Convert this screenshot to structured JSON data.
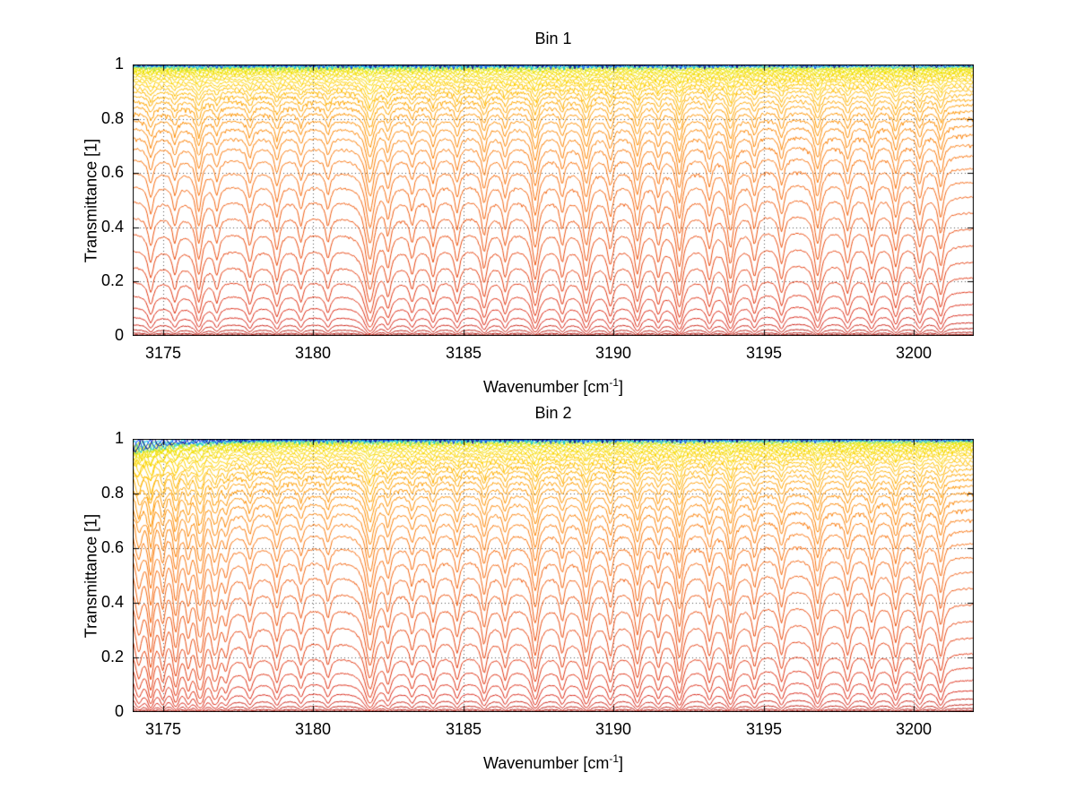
{
  "figure": {
    "background": "#ffffff"
  },
  "chart_data": [
    {
      "type": "line",
      "title": "Bin 1",
      "xlabel_pre": "Wavenumber [cm",
      "xlabel_sup": "-1",
      "xlabel_post": "]",
      "ylabel": "Transmittance [1]",
      "xlim": [
        3174,
        3202
      ],
      "ylim": [
        0,
        1
      ],
      "xticks": [
        "3175",
        "3180",
        "3185",
        "3190",
        "3195",
        "3200"
      ],
      "xtick_values": [
        3175,
        3180,
        3185,
        3190,
        3195,
        3200
      ],
      "yticks": [
        "1",
        "0.8",
        "0.6",
        "0.4",
        "0.2",
        "0"
      ],
      "ytick_values": [
        1,
        0.8,
        0.6,
        0.4,
        0.2,
        0
      ],
      "grid": "dotted",
      "description": "Stack of ~42 transmittance spectra (Beer-Lambert: T=exp(-tau*(1+continuum+lines))); 'levels' are each curve's continuum transmittance, 'lines' are absorption lines [center cm-1, relative strength, halfwidth cm-1].",
      "levels": [
        0.9995,
        0.998,
        0.996,
        0.9935,
        0.9905,
        0.987,
        0.983,
        0.978,
        0.9725,
        0.966,
        0.9585,
        0.95,
        0.9405,
        0.93,
        0.918,
        0.9045,
        0.889,
        0.871,
        0.851,
        0.8285,
        0.803,
        0.774,
        0.7415,
        0.705,
        0.664,
        0.6185,
        0.5685,
        0.514,
        0.456,
        0.3955,
        0.334,
        0.2735,
        0.216,
        0.1635,
        0.1175,
        0.079,
        0.049,
        0.0275,
        0.0135,
        0.0055,
        0.0018,
        0.0004
      ],
      "continuum_slope": 0.05,
      "lines": [
        [
          3174.6,
          0.35,
          0.1
        ],
        [
          3175.4,
          0.3,
          0.09
        ],
        [
          3176.2,
          0.55,
          0.11
        ],
        [
          3176.8,
          0.3,
          0.09
        ],
        [
          3177.9,
          0.35,
          0.1
        ],
        [
          3178.8,
          0.4,
          0.1
        ],
        [
          3179.6,
          0.3,
          0.09
        ],
        [
          3180.5,
          0.3,
          0.09
        ],
        [
          3181.9,
          0.85,
          0.16
        ],
        [
          3182.5,
          0.4,
          0.1
        ],
        [
          3183.3,
          0.3,
          0.09
        ],
        [
          3184.0,
          0.35,
          0.09
        ],
        [
          3184.8,
          0.35,
          0.09
        ],
        [
          3185.7,
          0.45,
          0.1
        ],
        [
          3186.4,
          0.35,
          0.09
        ],
        [
          3187.4,
          0.65,
          0.12
        ],
        [
          3188.3,
          0.35,
          0.09
        ],
        [
          3189.1,
          0.6,
          0.12
        ],
        [
          3189.9,
          0.4,
          0.1
        ],
        [
          3190.8,
          0.55,
          0.11
        ],
        [
          3191.5,
          0.35,
          0.09
        ],
        [
          3192.2,
          0.7,
          0.12
        ],
        [
          3193.2,
          0.4,
          0.1
        ],
        [
          3193.9,
          0.65,
          0.12
        ],
        [
          3194.7,
          0.35,
          0.09
        ],
        [
          3195.6,
          0.4,
          0.1
        ],
        [
          3196.8,
          0.6,
          0.12
        ],
        [
          3197.8,
          0.4,
          0.1
        ],
        [
          3198.6,
          0.4,
          0.1
        ],
        [
          3199.4,
          0.45,
          0.1
        ],
        [
          3200.2,
          0.4,
          0.1
        ],
        [
          3200.9,
          0.45,
          0.1
        ]
      ],
      "edge": null,
      "colormap": [
        {
          "pos": 0.0,
          "color": "#00008f"
        },
        {
          "pos": 0.025,
          "color": "#0040ff"
        },
        {
          "pos": 0.05,
          "color": "#00c8e8"
        },
        {
          "pos": 0.08,
          "color": "#60e080"
        },
        {
          "pos": 0.11,
          "color": "#e8e800"
        },
        {
          "pos": 0.3,
          "color": "#ffd000"
        },
        {
          "pos": 0.45,
          "color": "#ff9800"
        },
        {
          "pos": 0.6,
          "color": "#f87010"
        },
        {
          "pos": 0.72,
          "color": "#e84810"
        },
        {
          "pos": 0.85,
          "color": "#d82010"
        },
        {
          "pos": 1.0,
          "color": "#8f0000"
        }
      ]
    },
    {
      "type": "line",
      "title": "Bin 2",
      "xlabel_pre": "Wavenumber [cm",
      "xlabel_sup": "-1",
      "xlabel_post": "]",
      "ylabel": "Transmittance [1]",
      "xlim": [
        3174,
        3202
      ],
      "ylim": [
        0,
        1
      ],
      "xticks": [
        "3175",
        "3180",
        "3185",
        "3190",
        "3195",
        "3200"
      ],
      "xtick_values": [
        3175,
        3180,
        3185,
        3190,
        3195,
        3200
      ],
      "yticks": [
        "1",
        "0.8",
        "0.6",
        "0.4",
        "0.2",
        "0"
      ],
      "ytick_values": [
        1,
        0.8,
        0.6,
        0.4,
        0.2,
        0
      ],
      "grid": "dotted",
      "description": "Same spectra stack as Bin 1 but with strong oscillatory structure and extra absorption lines near the left edge (3174-3177 cm-1).",
      "levels": [
        0.9995,
        0.998,
        0.996,
        0.9935,
        0.9905,
        0.987,
        0.983,
        0.978,
        0.9725,
        0.966,
        0.9585,
        0.95,
        0.9405,
        0.93,
        0.918,
        0.9045,
        0.889,
        0.871,
        0.851,
        0.8285,
        0.803,
        0.774,
        0.7415,
        0.705,
        0.664,
        0.6185,
        0.5685,
        0.514,
        0.456,
        0.3955,
        0.334,
        0.2735,
        0.216,
        0.1635,
        0.1175,
        0.079,
        0.049,
        0.0275,
        0.0135,
        0.0055,
        0.0018,
        0.0004
      ],
      "continuum_slope": 0.05,
      "lines": [
        [
          3174.6,
          0.35,
          0.1
        ],
        [
          3175.4,
          0.3,
          0.09
        ],
        [
          3176.2,
          0.55,
          0.11
        ],
        [
          3176.8,
          0.3,
          0.09
        ],
        [
          3177.9,
          0.35,
          0.1
        ],
        [
          3178.8,
          0.4,
          0.1
        ],
        [
          3179.6,
          0.3,
          0.09
        ],
        [
          3180.5,
          0.3,
          0.09
        ],
        [
          3181.9,
          0.85,
          0.16
        ],
        [
          3182.5,
          0.4,
          0.1
        ],
        [
          3183.3,
          0.3,
          0.09
        ],
        [
          3184.0,
          0.35,
          0.09
        ],
        [
          3184.8,
          0.35,
          0.09
        ],
        [
          3185.7,
          0.45,
          0.1
        ],
        [
          3186.4,
          0.35,
          0.09
        ],
        [
          3187.4,
          0.65,
          0.12
        ],
        [
          3188.3,
          0.35,
          0.09
        ],
        [
          3189.1,
          0.6,
          0.12
        ],
        [
          3189.9,
          0.4,
          0.1
        ],
        [
          3190.8,
          0.55,
          0.11
        ],
        [
          3191.5,
          0.35,
          0.09
        ],
        [
          3192.2,
          0.7,
          0.12
        ],
        [
          3193.2,
          0.4,
          0.1
        ],
        [
          3193.9,
          0.65,
          0.12
        ],
        [
          3194.7,
          0.35,
          0.09
        ],
        [
          3195.6,
          0.4,
          0.1
        ],
        [
          3196.8,
          0.6,
          0.12
        ],
        [
          3197.8,
          0.4,
          0.1
        ],
        [
          3198.6,
          0.4,
          0.1
        ],
        [
          3199.4,
          0.45,
          0.1
        ],
        [
          3200.2,
          0.4,
          0.1
        ],
        [
          3200.9,
          0.45,
          0.1
        ]
      ],
      "edge": {
        "amp": 0.05,
        "decay": 1.4,
        "period": 0.4,
        "lines": [
          [
            3174.2,
            0.5,
            0.12
          ],
          [
            3174.6,
            0.45,
            0.1
          ],
          [
            3175.0,
            0.55,
            0.1
          ],
          [
            3175.45,
            0.45,
            0.1
          ],
          [
            3175.85,
            0.5,
            0.1
          ],
          [
            3176.3,
            0.45,
            0.1
          ],
          [
            3176.7,
            0.4,
            0.1
          ],
          [
            3177.1,
            0.35,
            0.1
          ]
        ]
      },
      "colormap": [
        {
          "pos": 0.0,
          "color": "#00008f"
        },
        {
          "pos": 0.025,
          "color": "#0040ff"
        },
        {
          "pos": 0.05,
          "color": "#00c8e8"
        },
        {
          "pos": 0.08,
          "color": "#60e080"
        },
        {
          "pos": 0.11,
          "color": "#e8e800"
        },
        {
          "pos": 0.3,
          "color": "#ffd000"
        },
        {
          "pos": 0.45,
          "color": "#ff9800"
        },
        {
          "pos": 0.6,
          "color": "#f87010"
        },
        {
          "pos": 0.72,
          "color": "#e84810"
        },
        {
          "pos": 0.85,
          "color": "#d82010"
        },
        {
          "pos": 1.0,
          "color": "#8f0000"
        }
      ]
    }
  ]
}
